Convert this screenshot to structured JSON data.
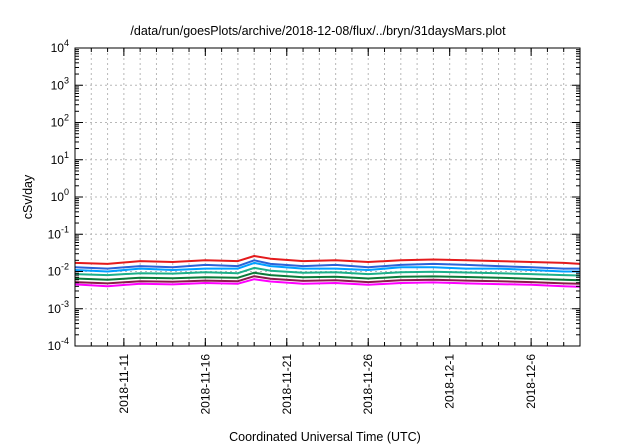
{
  "chart_data": {
    "type": "line",
    "title": "/data/run/goesPlots/archive/2018-12-08/flux/../bryn/31daysMars.plot",
    "xlabel": "Coordinated Universal Time (UTC)",
    "ylabel": "cSv/day",
    "yscale": "log",
    "ylim": [
      0.0001,
      10000
    ],
    "xlim": [
      "2018-11-08",
      "2018-12-09"
    ],
    "grid": true,
    "y_tick_labels": [
      {
        "base": "10",
        "exp": "4"
      },
      {
        "base": "10",
        "exp": "3"
      },
      {
        "base": "10",
        "exp": "2"
      },
      {
        "base": "10",
        "exp": "1"
      },
      {
        "base": "10",
        "exp": "0"
      },
      {
        "base": "10",
        "exp": "-1"
      },
      {
        "base": "10",
        "exp": "-2"
      },
      {
        "base": "10",
        "exp": "-3"
      },
      {
        "base": "10",
        "exp": "-4"
      }
    ],
    "x_tick_labels": [
      "2018-11-11",
      "2018-11-16",
      "2018-11-21",
      "2018-11-26",
      "2018-12-1",
      "2018-12-6"
    ],
    "x_ticks": [
      "2018-11-11",
      "2018-11-16",
      "2018-11-21",
      "2018-11-26",
      "2018-12-01",
      "2018-12-06"
    ],
    "x": [
      "2018-11-08",
      "2018-11-10",
      "2018-11-12",
      "2018-11-14",
      "2018-11-16",
      "2018-11-18",
      "2018-11-19",
      "2018-11-20",
      "2018-11-22",
      "2018-11-24",
      "2018-11-26",
      "2018-11-28",
      "2018-11-30",
      "2018-12-02",
      "2018-12-04",
      "2018-12-06",
      "2018-12-08",
      "2018-12-09"
    ],
    "series": [
      {
        "color": "#e41a1c",
        "values": [
          0.017,
          0.016,
          0.019,
          0.018,
          0.02,
          0.019,
          0.026,
          0.022,
          0.019,
          0.02,
          0.018,
          0.02,
          0.021,
          0.02,
          0.019,
          0.018,
          0.017,
          0.016
        ]
      },
      {
        "color": "#2a62d8",
        "values": [
          0.013,
          0.012,
          0.014,
          0.013,
          0.015,
          0.014,
          0.02,
          0.016,
          0.014,
          0.015,
          0.013,
          0.015,
          0.016,
          0.015,
          0.014,
          0.013,
          0.012,
          0.012
        ]
      },
      {
        "color": "#00a0ff",
        "values": [
          0.011,
          0.01,
          0.012,
          0.011,
          0.012,
          0.012,
          0.017,
          0.014,
          0.012,
          0.012,
          0.011,
          0.013,
          0.013,
          0.012,
          0.012,
          0.011,
          0.01,
          0.01
        ]
      },
      {
        "color": "#1bb08a",
        "values": [
          0.0085,
          0.008,
          0.009,
          0.0088,
          0.0095,
          0.009,
          0.0125,
          0.0105,
          0.0092,
          0.0095,
          0.0085,
          0.0095,
          0.0098,
          0.0094,
          0.009,
          0.0085,
          0.008,
          0.0078
        ]
      },
      {
        "color": "#0a7a3a",
        "values": [
          0.0065,
          0.006,
          0.0068,
          0.0066,
          0.007,
          0.0068,
          0.0093,
          0.008,
          0.007,
          0.0072,
          0.0065,
          0.0072,
          0.0074,
          0.0071,
          0.0068,
          0.0064,
          0.006,
          0.0058
        ]
      },
      {
        "color": "#8b1a4a",
        "values": [
          0.0052,
          0.0048,
          0.0055,
          0.0053,
          0.0057,
          0.0055,
          0.0075,
          0.0064,
          0.0056,
          0.0058,
          0.0052,
          0.0058,
          0.006,
          0.0057,
          0.0055,
          0.0052,
          0.0048,
          0.0047
        ]
      },
      {
        "color": "#ff00ff",
        "values": [
          0.0045,
          0.004,
          0.0047,
          0.0045,
          0.0049,
          0.0047,
          0.0062,
          0.0054,
          0.0047,
          0.0049,
          0.0044,
          0.0049,
          0.0051,
          0.0048,
          0.0046,
          0.0044,
          0.004,
          0.0039
        ]
      }
    ]
  }
}
